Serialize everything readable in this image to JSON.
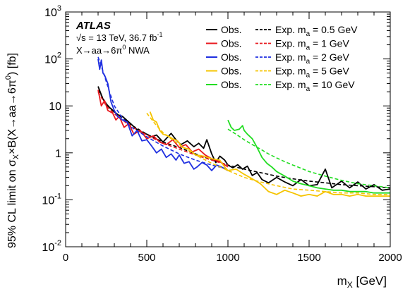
{
  "chart_data": {
    "type": "line",
    "title": "",
    "xlabel": "m_X [GeV]",
    "ylabel": "95% CL limit on σ_X×B(X→aa→6π^0) [fb]",
    "xlim": [
      0,
      2000
    ],
    "ylim": [
      0.01,
      1000
    ],
    "y_scale": "log",
    "grid": false,
    "legend_position": "top-right",
    "x_ticks": [
      0,
      500,
      1000,
      1500,
      2000
    ],
    "y_ticks": [
      0.01,
      0.1,
      1,
      10,
      100,
      1000
    ],
    "x_tick_labels": [
      "0",
      "500",
      "1000",
      "1500",
      "2000"
    ],
    "y_tick_labels": [
      {
        "base": "10",
        "exp": "-2"
      },
      {
        "base": "10",
        "exp": "-1"
      },
      {
        "base": "1",
        "exp": ""
      },
      {
        "base": "10",
        "exp": ""
      },
      {
        "base": "10",
        "exp": "2"
      },
      {
        "base": "10",
        "exp": "3"
      }
    ],
    "annotations": {
      "experiment": "ATLAS",
      "energy_prefix": "√s = 13 TeV, 36.7 fb",
      "energy_exp": "-1",
      "process_prefix": "X→aa→6π",
      "process_exp": "0",
      "process_suffix": " NWA"
    },
    "legend": {
      "obs_label": "Obs.",
      "exp_prefix": "Exp. m",
      "exp_sub": "a",
      "entries": [
        {
          "color": "#000000",
          "exp_value": " = 0.5 GeV"
        },
        {
          "color": "#e8181e",
          "exp_value": " = 1 GeV"
        },
        {
          "color": "#1f2fe0",
          "exp_value": " = 2 GeV"
        },
        {
          "color": "#f5c400",
          "exp_value": " = 5 GeV"
        },
        {
          "color": "#22dd22",
          "exp_value": " = 10 GeV"
        }
      ]
    },
    "series": [
      {
        "name": "Obs. m_a = 0.5 GeV",
        "kind": "observed",
        "color": "#000000",
        "points": [
          [
            200,
            26
          ],
          [
            230,
            14
          ],
          [
            260,
            10
          ],
          [
            290,
            8
          ],
          [
            320,
            6.5
          ],
          [
            350,
            6
          ],
          [
            400,
            4.2
          ],
          [
            450,
            2.9
          ],
          [
            500,
            2.5
          ],
          [
            530,
            2.2
          ],
          [
            560,
            2.4
          ],
          [
            600,
            1.7
          ],
          [
            650,
            2.6
          ],
          [
            680,
            1.9
          ],
          [
            710,
            1.5
          ],
          [
            750,
            1.8
          ],
          [
            790,
            1.35
          ],
          [
            820,
            1.6
          ],
          [
            850,
            1.25
          ],
          [
            870,
            1.9
          ],
          [
            900,
            0.95
          ],
          [
            925,
            0.62
          ],
          [
            950,
            0.85
          ],
          [
            980,
            0.7
          ],
          [
            1000,
            0.55
          ],
          [
            1030,
            0.48
          ],
          [
            1060,
            0.56
          ],
          [
            1090,
            0.45
          ],
          [
            1120,
            0.52
          ],
          [
            1150,
            0.33
          ],
          [
            1180,
            0.38
          ],
          [
            1210,
            0.27
          ],
          [
            1250,
            0.23
          ],
          [
            1300,
            0.3
          ],
          [
            1350,
            0.24
          ],
          [
            1400,
            0.2
          ],
          [
            1450,
            0.27
          ],
          [
            1500,
            0.2
          ],
          [
            1550,
            0.21
          ],
          [
            1600,
            0.45
          ],
          [
            1640,
            0.18
          ],
          [
            1700,
            0.25
          ],
          [
            1750,
            0.18
          ],
          [
            1800,
            0.24
          ],
          [
            1850,
            0.17
          ],
          [
            1900,
            0.21
          ],
          [
            1950,
            0.16
          ],
          [
            2000,
            0.17
          ]
        ]
      },
      {
        "name": "Exp. m_a = 0.5 GeV",
        "kind": "expected",
        "color": "#000000",
        "points": [
          [
            200,
            22
          ],
          [
            250,
            11
          ],
          [
            300,
            7.5
          ],
          [
            350,
            5.5
          ],
          [
            400,
            4.0
          ],
          [
            500,
            2.5
          ],
          [
            600,
            1.7
          ],
          [
            700,
            1.3
          ],
          [
            800,
            0.95
          ],
          [
            900,
            0.72
          ],
          [
            1000,
            0.55
          ],
          [
            1100,
            0.45
          ],
          [
            1200,
            0.38
          ],
          [
            1300,
            0.32
          ],
          [
            1400,
            0.28
          ],
          [
            1500,
            0.25
          ],
          [
            1600,
            0.23
          ],
          [
            1700,
            0.21
          ],
          [
            1800,
            0.2
          ],
          [
            1900,
            0.19
          ],
          [
            2000,
            0.18
          ]
        ]
      },
      {
        "name": "Obs. m_a = 1 GeV",
        "kind": "observed",
        "color": "#e8181e",
        "points": [
          [
            200,
            22
          ],
          [
            220,
            10
          ],
          [
            240,
            13
          ],
          [
            260,
            8
          ],
          [
            290,
            7
          ],
          [
            310,
            5
          ],
          [
            330,
            6
          ],
          [
            360,
            3.5
          ],
          [
            390,
            4.2
          ],
          [
            420,
            2.5
          ],
          [
            460,
            3.0
          ],
          [
            500,
            2.0
          ],
          [
            540,
            2.3
          ],
          [
            580,
            1.7
          ],
          [
            620,
            1.5
          ],
          [
            660,
            1.9
          ],
          [
            700,
            1.3
          ],
          [
            740,
            1.5
          ],
          [
            780,
            1.05
          ],
          [
            820,
            1.2
          ],
          [
            860,
            0.9
          ],
          [
            900,
            0.75
          ],
          [
            950,
            0.65
          ],
          [
            1000,
            0.5
          ]
        ]
      },
      {
        "name": "Exp. m_a = 1 GeV",
        "kind": "expected",
        "color": "#e8181e",
        "points": [
          [
            200,
            20
          ],
          [
            250,
            10
          ],
          [
            300,
            6.8
          ],
          [
            350,
            5.0
          ],
          [
            400,
            3.7
          ],
          [
            500,
            2.4
          ],
          [
            600,
            1.6
          ],
          [
            700,
            1.2
          ],
          [
            800,
            0.9
          ],
          [
            900,
            0.7
          ],
          [
            1000,
            0.55
          ]
        ]
      },
      {
        "name": "Obs. m_a = 2 GeV",
        "kind": "observed",
        "color": "#1f2fe0",
        "points": [
          [
            200,
            100
          ],
          [
            210,
            60
          ],
          [
            220,
            95
          ],
          [
            230,
            50
          ],
          [
            240,
            45
          ],
          [
            260,
            30
          ],
          [
            280,
            12
          ],
          [
            300,
            8
          ],
          [
            320,
            6
          ],
          [
            350,
            5
          ],
          [
            380,
            4.5
          ],
          [
            410,
            2.3
          ],
          [
            440,
            3.0
          ],
          [
            470,
            1.8
          ],
          [
            500,
            1.9
          ],
          [
            530,
            1.4
          ],
          [
            560,
            1.0
          ],
          [
            590,
            1.2
          ],
          [
            620,
            0.8
          ],
          [
            650,
            0.95
          ],
          [
            680,
            0.7
          ],
          [
            700,
            0.9
          ],
          [
            730,
            0.6
          ],
          [
            760,
            0.65
          ],
          [
            790,
            0.45
          ],
          [
            810,
            0.5
          ],
          [
            840,
            0.62
          ],
          [
            870,
            0.55
          ],
          [
            900,
            0.42
          ],
          [
            930,
            0.55
          ],
          [
            960,
            0.5
          ],
          [
            1000,
            0.42
          ]
        ]
      },
      {
        "name": "Exp. m_a = 2 GeV",
        "kind": "expected",
        "color": "#1f2fe0",
        "points": [
          [
            200,
            110
          ],
          [
            230,
            55
          ],
          [
            270,
            20
          ],
          [
            300,
            10
          ],
          [
            350,
            5.5
          ],
          [
            400,
            3.6
          ],
          [
            500,
            2.2
          ],
          [
            600,
            1.4
          ],
          [
            700,
            0.95
          ],
          [
            800,
            0.7
          ],
          [
            900,
            0.55
          ],
          [
            1000,
            0.45
          ]
        ]
      },
      {
        "name": "Obs. m_a = 5 GeV",
        "kind": "observed",
        "color": "#f5c400",
        "points": [
          [
            520,
            7.5
          ],
          [
            540,
            5
          ],
          [
            560,
            4.5
          ],
          [
            580,
            3
          ],
          [
            600,
            2.5
          ],
          [
            630,
            2.3
          ],
          [
            660,
            2.0
          ],
          [
            690,
            1.8
          ],
          [
            720,
            1.3
          ],
          [
            760,
            1.2
          ],
          [
            800,
            0.9
          ],
          [
            850,
            0.85
          ],
          [
            900,
            0.75
          ],
          [
            950,
            0.7
          ],
          [
            980,
            0.5
          ],
          [
            1000,
            0.42
          ],
          [
            1050,
            0.45
          ],
          [
            1100,
            0.35
          ],
          [
            1150,
            0.28
          ],
          [
            1200,
            0.22
          ],
          [
            1250,
            0.15
          ],
          [
            1300,
            0.13
          ],
          [
            1350,
            0.16
          ],
          [
            1400,
            0.14
          ],
          [
            1450,
            0.12
          ],
          [
            1500,
            0.13
          ],
          [
            1550,
            0.12
          ],
          [
            1600,
            0.15
          ],
          [
            1650,
            0.13
          ],
          [
            1700,
            0.13
          ],
          [
            1750,
            0.12
          ],
          [
            1800,
            0.13
          ],
          [
            1850,
            0.12
          ],
          [
            1900,
            0.12
          ],
          [
            1950,
            0.12
          ],
          [
            2000,
            0.12
          ]
        ]
      },
      {
        "name": "Exp. m_a = 5 GeV",
        "kind": "expected",
        "color": "#f5c400",
        "points": [
          [
            500,
            7.0
          ],
          [
            550,
            4.2
          ],
          [
            600,
            2.7
          ],
          [
            650,
            2.0
          ],
          [
            700,
            1.5
          ],
          [
            800,
            0.9
          ],
          [
            900,
            0.6
          ],
          [
            1000,
            0.42
          ],
          [
            1100,
            0.3
          ],
          [
            1200,
            0.24
          ],
          [
            1300,
            0.2
          ],
          [
            1400,
            0.17
          ],
          [
            1500,
            0.16
          ],
          [
            1600,
            0.15
          ],
          [
            1700,
            0.14
          ],
          [
            1800,
            0.14
          ],
          [
            1900,
            0.13
          ],
          [
            2000,
            0.13
          ]
        ]
      },
      {
        "name": "Obs. m_a = 10 GeV",
        "kind": "observed",
        "color": "#22dd22",
        "points": [
          [
            1000,
            5.0
          ],
          [
            1020,
            3.5
          ],
          [
            1040,
            3.0
          ],
          [
            1070,
            3.2
          ],
          [
            1090,
            3.8
          ],
          [
            1100,
            3.0
          ],
          [
            1120,
            2.5
          ],
          [
            1150,
            2.0
          ],
          [
            1170,
            1.5
          ],
          [
            1190,
            1.1
          ],
          [
            1210,
            0.8
          ],
          [
            1240,
            0.6
          ],
          [
            1270,
            0.5
          ],
          [
            1300,
            0.4
          ],
          [
            1350,
            0.32
          ],
          [
            1400,
            0.25
          ],
          [
            1450,
            0.22
          ],
          [
            1500,
            0.2
          ],
          [
            1550,
            0.18
          ],
          [
            1600,
            0.17
          ],
          [
            1650,
            0.16
          ],
          [
            1700,
            0.16
          ],
          [
            1750,
            0.15
          ],
          [
            1800,
            0.15
          ],
          [
            1850,
            0.15
          ],
          [
            1900,
            0.14
          ],
          [
            1950,
            0.14
          ],
          [
            2000,
            0.14
          ]
        ]
      },
      {
        "name": "Exp. m_a = 10 GeV",
        "kind": "expected",
        "color": "#22dd22",
        "points": [
          [
            1000,
            3.2
          ],
          [
            1050,
            2.5
          ],
          [
            1100,
            1.9
          ],
          [
            1150,
            1.5
          ],
          [
            1200,
            1.2
          ],
          [
            1250,
            0.95
          ],
          [
            1300,
            0.78
          ],
          [
            1350,
            0.65
          ],
          [
            1400,
            0.55
          ],
          [
            1450,
            0.47
          ],
          [
            1500,
            0.4
          ],
          [
            1600,
            0.32
          ],
          [
            1700,
            0.26
          ],
          [
            1800,
            0.22
          ],
          [
            1900,
            0.2
          ],
          [
            2000,
            0.18
          ]
        ]
      }
    ]
  }
}
